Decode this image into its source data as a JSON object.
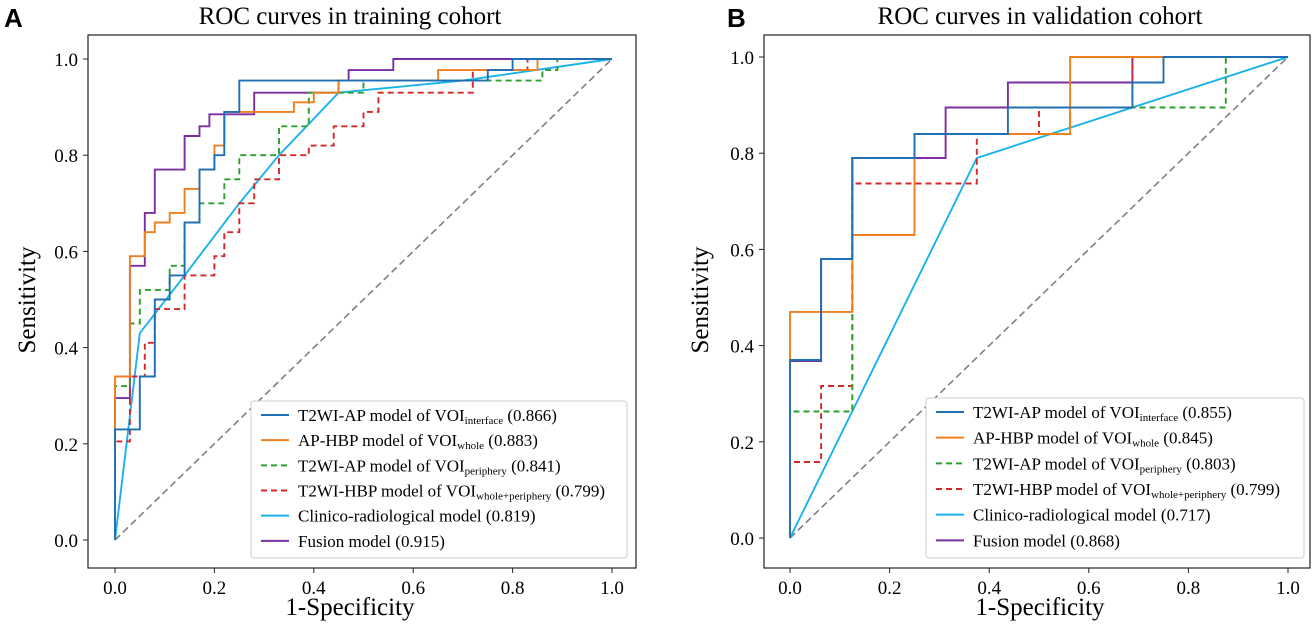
{
  "chart_data": [
    {
      "type": "line",
      "panel_label": "A",
      "title": "ROC curves in training cohort",
      "xlabel": "1-Specificity",
      "ylabel": "Sensitivity",
      "xlim": [
        0,
        1
      ],
      "ylim": [
        0,
        1
      ],
      "xticks": [
        "0.0",
        "0.2",
        "0.4",
        "0.6",
        "0.8",
        "1.0"
      ],
      "yticks": [
        "0.0",
        "0.2",
        "0.4",
        "0.6",
        "0.8",
        "1.0"
      ],
      "legend_position": "bottom-right",
      "series": [
        {
          "name": "T2WI-AP model of VOI",
          "sub": "interface",
          "auc": "(0.866)",
          "color": "#1f6fb5",
          "dash": "solid",
          "x": [
            0,
            0,
            0.05,
            0.05,
            0.08,
            0.08,
            0.11,
            0.11,
            0.14,
            0.14,
            0.17,
            0.17,
            0.2,
            0.2,
            0.22,
            0.22,
            0.25,
            0.25,
            0.45,
            0.45,
            0.55,
            0.55,
            0.75,
            0.75,
            0.8,
            0.8,
            1.0
          ],
          "y": [
            0,
            0.23,
            0.23,
            0.34,
            0.34,
            0.5,
            0.5,
            0.55,
            0.55,
            0.66,
            0.66,
            0.77,
            0.77,
            0.8,
            0.8,
            0.89,
            0.89,
            0.955,
            0.955,
            0.955,
            0.955,
            0.955,
            0.955,
            0.977,
            0.977,
            1.0,
            1.0
          ]
        },
        {
          "name": "AP-HBP model of VOI",
          "sub": "whole",
          "auc": "(0.883)",
          "color": "#f07f20",
          "dash": "solid",
          "x": [
            0,
            0,
            0.03,
            0.03,
            0.06,
            0.06,
            0.08,
            0.08,
            0.11,
            0.11,
            0.14,
            0.14,
            0.17,
            0.17,
            0.2,
            0.2,
            0.22,
            0.22,
            0.3,
            0.3,
            0.36,
            0.36,
            0.4,
            0.4,
            0.45,
            0.45,
            0.65,
            0.65,
            0.7,
            0.7,
            0.85,
            0.85,
            1.0
          ],
          "y": [
            0,
            0.34,
            0.34,
            0.59,
            0.59,
            0.64,
            0.64,
            0.66,
            0.66,
            0.68,
            0.68,
            0.73,
            0.73,
            0.77,
            0.77,
            0.82,
            0.82,
            0.89,
            0.89,
            0.89,
            0.89,
            0.91,
            0.91,
            0.93,
            0.93,
            0.955,
            0.955,
            0.977,
            0.977,
            0.977,
            0.977,
            1.0,
            1.0
          ]
        },
        {
          "name": "T2WI-AP model of VOI",
          "sub": "periphery",
          "auc": "(0.841)",
          "color": "#2ca02c",
          "dash": "dashed",
          "x": [
            0,
            0,
            0.03,
            0.03,
            0.05,
            0.05,
            0.11,
            0.11,
            0.14,
            0.14,
            0.17,
            0.17,
            0.22,
            0.22,
            0.25,
            0.25,
            0.33,
            0.33,
            0.39,
            0.39,
            0.5,
            0.5,
            0.78,
            0.78,
            0.86,
            0.86,
            0.89,
            0.89,
            1.0
          ],
          "y": [
            0,
            0.32,
            0.32,
            0.45,
            0.45,
            0.52,
            0.52,
            0.57,
            0.57,
            0.66,
            0.66,
            0.7,
            0.7,
            0.75,
            0.75,
            0.8,
            0.8,
            0.86,
            0.86,
            0.93,
            0.93,
            0.955,
            0.955,
            0.955,
            0.955,
            0.977,
            0.977,
            1.0,
            1.0
          ]
        },
        {
          "name": "T2WI-HBP model of VOI",
          "sub": "whole+periphery",
          "auc": "(0.799)",
          "color": "#d62728",
          "dash": "dashed",
          "x": [
            0,
            0,
            0.03,
            0.03,
            0.06,
            0.06,
            0.08,
            0.08,
            0.14,
            0.14,
            0.17,
            0.17,
            0.2,
            0.2,
            0.22,
            0.22,
            0.25,
            0.25,
            0.28,
            0.28,
            0.33,
            0.33,
            0.39,
            0.39,
            0.44,
            0.44,
            0.5,
            0.5,
            0.53,
            0.53,
            0.72,
            0.72,
            0.83,
            0.83,
            1.0
          ],
          "y": [
            0,
            0.205,
            0.205,
            0.34,
            0.34,
            0.41,
            0.41,
            0.48,
            0.48,
            0.55,
            0.55,
            0.55,
            0.55,
            0.59,
            0.59,
            0.64,
            0.64,
            0.7,
            0.7,
            0.75,
            0.75,
            0.8,
            0.8,
            0.82,
            0.82,
            0.86,
            0.86,
            0.89,
            0.89,
            0.93,
            0.93,
            0.977,
            0.977,
            1.0,
            1.0
          ]
        },
        {
          "name": "Clinico-radiological model",
          "sub": "",
          "auc": "(0.819)",
          "color": "#1ab2ec",
          "dash": "solid",
          "x": [
            0,
            0.05,
            0.14,
            0.25,
            0.33,
            0.45,
            0.7,
            1.0
          ],
          "y": [
            0,
            0.43,
            0.55,
            0.7,
            0.8,
            0.93,
            0.955,
            1.0
          ]
        },
        {
          "name": "Fusion model",
          "sub": "",
          "auc": "(0.915)",
          "color": "#7b2fa1",
          "dash": "solid",
          "x": [
            0,
            0,
            0.03,
            0.03,
            0.06,
            0.06,
            0.08,
            0.08,
            0.11,
            0.11,
            0.14,
            0.14,
            0.17,
            0.17,
            0.19,
            0.19,
            0.22,
            0.22,
            0.28,
            0.28,
            0.45,
            0.45,
            0.47,
            0.47,
            0.56,
            0.56,
            1.0
          ],
          "y": [
            0,
            0.295,
            0.295,
            0.57,
            0.57,
            0.68,
            0.68,
            0.77,
            0.77,
            0.77,
            0.77,
            0.84,
            0.84,
            0.86,
            0.86,
            0.885,
            0.885,
            0.885,
            0.885,
            0.93,
            0.93,
            0.955,
            0.955,
            0.977,
            0.977,
            1.0,
            1.0
          ]
        },
        {
          "name": "Reference",
          "sub": "",
          "auc": "",
          "color": "#808080",
          "dash": "reference",
          "in_legend": false,
          "x": [
            0,
            1.0
          ],
          "y": [
            0,
            1.0
          ]
        }
      ]
    },
    {
      "type": "line",
      "panel_label": "B",
      "title": "ROC curves in validation cohort",
      "xlabel": "1-Specificity",
      "ylabel": "Sensitivity",
      "xlim": [
        0,
        1
      ],
      "ylim": [
        0,
        1
      ],
      "xticks": [
        "0.0",
        "0.2",
        "0.4",
        "0.6",
        "0.8",
        "1.0"
      ],
      "yticks": [
        "0.0",
        "0.2",
        "0.4",
        "0.6",
        "0.8",
        "1.0"
      ],
      "legend_position": "bottom-right",
      "series": [
        {
          "name": "T2WI-AP model of VOI",
          "sub": "interface",
          "auc": "(0.855)",
          "color": "#1f6fb5",
          "dash": "solid",
          "x": [
            0,
            0,
            0.0625,
            0.0625,
            0.125,
            0.125,
            0.25,
            0.25,
            0.3125,
            0.3125,
            0.4375,
            0.4375,
            0.6875,
            0.6875,
            0.75,
            0.75,
            1.0
          ],
          "y": [
            0,
            0.37,
            0.37,
            0.58,
            0.58,
            0.79,
            0.79,
            0.84,
            0.84,
            0.84,
            0.84,
            0.895,
            0.895,
            0.947,
            0.947,
            1.0,
            1.0
          ]
        },
        {
          "name": "AP-HBP model of VOI",
          "sub": "whole",
          "auc": "(0.845)",
          "color": "#f07f20",
          "dash": "solid",
          "x": [
            0,
            0,
            0.0625,
            0.0625,
            0.125,
            0.125,
            0.25,
            0.25,
            0.5625,
            0.5625,
            1.0
          ],
          "y": [
            0,
            0.47,
            0.47,
            0.47,
            0.47,
            0.63,
            0.63,
            0.84,
            0.84,
            1.0,
            1.0
          ]
        },
        {
          "name": "T2WI-AP model of VOI",
          "sub": "periphery",
          "auc": "(0.803)",
          "color": "#2ca02c",
          "dash": "dashed",
          "x": [
            0,
            0,
            0.125,
            0.125,
            0.25,
            0.25,
            0.375,
            0.375,
            0.5625,
            0.5625,
            0.875,
            0.875,
            1.0
          ],
          "y": [
            0,
            0.263,
            0.263,
            0.79,
            0.79,
            0.84,
            0.84,
            0.84,
            0.84,
            0.895,
            0.895,
            1.0,
            1.0
          ]
        },
        {
          "name": "T2WI-HBP model of VOI",
          "sub": "whole+periphery",
          "auc": "(0.799)",
          "color": "#d62728",
          "dash": "dashed",
          "x": [
            0,
            0,
            0.0625,
            0.0625,
            0.125,
            0.125,
            0.375,
            0.375,
            0.5,
            0.5,
            0.6875,
            0.6875,
            1.0
          ],
          "y": [
            0,
            0.158,
            0.158,
            0.316,
            0.316,
            0.737,
            0.737,
            0.84,
            0.84,
            0.895,
            0.895,
            1.0,
            1.0
          ]
        },
        {
          "name": "Clinico-radiological model",
          "sub": "",
          "auc": "(0.717)",
          "color": "#1ab2ec",
          "dash": "solid",
          "x": [
            0,
            0.375,
            1.0
          ],
          "y": [
            0,
            0.79,
            1.0
          ]
        },
        {
          "name": "Fusion model",
          "sub": "",
          "auc": "(0.868)",
          "color": "#7b2fa1",
          "dash": "solid",
          "x": [
            0,
            0,
            0.0625,
            0.0625,
            0.125,
            0.125,
            0.25,
            0.25,
            0.3125,
            0.3125,
            0.4375,
            0.4375,
            0.6875,
            0.6875,
            1.0
          ],
          "y": [
            0,
            0.368,
            0.368,
            0.58,
            0.58,
            0.79,
            0.79,
            0.79,
            0.79,
            0.895,
            0.895,
            0.947,
            0.947,
            1.0,
            1.0
          ]
        },
        {
          "name": "Reference",
          "sub": "",
          "auc": "",
          "color": "#808080",
          "dash": "reference",
          "in_legend": false,
          "x": [
            0,
            1.0
          ],
          "y": [
            0,
            1.0
          ]
        }
      ]
    }
  ]
}
